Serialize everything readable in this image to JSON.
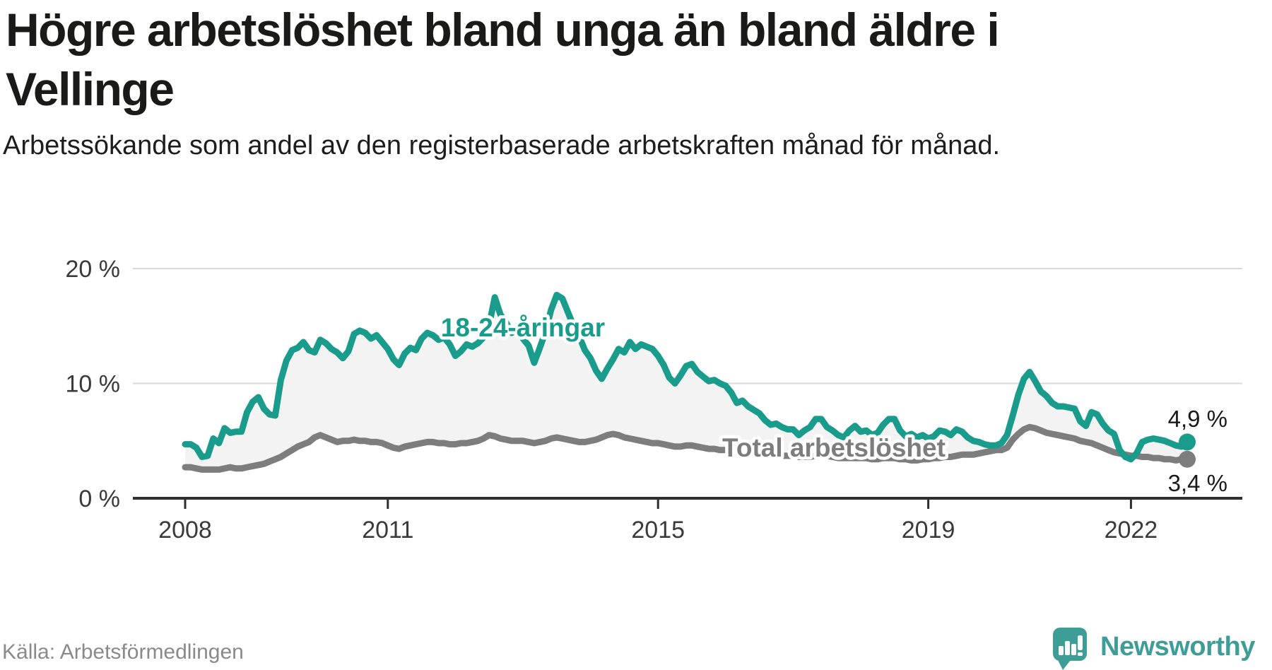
{
  "header": {
    "title": "Högre arbetslöshet bland unga än bland äldre i Vellinge",
    "subtitle": "Arbetssökande som andel av den registerbaserade arbetskraften månad för månad."
  },
  "footer": {
    "source": "Källa: Arbetsförmedlingen",
    "brand": "Newsworthy",
    "brand_icon": "bar-chart-speech-bubble-icon"
  },
  "colors": {
    "youth": "#1a9c8c",
    "total": "#7d7d7d",
    "area_fill": "#f3f3f3",
    "grid": "#d9d9d9",
    "axis": "#2f2f2f",
    "axis_text": "#3a3a3a",
    "value_text": "#1a1a1a",
    "brand_teal": "#3f9d98"
  },
  "chart_data": {
    "type": "line",
    "unit": "%",
    "frequency": "monthly",
    "start": "2008",
    "grid": "horizontal",
    "legend_position": "inline-on-lines",
    "ylim": [
      0,
      21
    ],
    "y_ticks": [
      {
        "label": "0 %",
        "value": 0
      },
      {
        "label": "10 %",
        "value": 10
      },
      {
        "label": "20 %",
        "value": 20
      }
    ],
    "x_ticks": [
      {
        "label": "2008",
        "year": 2008
      },
      {
        "label": "2011",
        "year": 2011
      },
      {
        "label": "2015",
        "year": 2015
      },
      {
        "label": "2019",
        "year": 2019
      },
      {
        "label": "2022",
        "year": 2022
      }
    ],
    "series": [
      {
        "name": "18-24-åringar",
        "color": "#1a9c8c",
        "end_label": "4,9 %",
        "values": [
          4.7,
          4.7,
          4.4,
          3.6,
          3.7,
          5.2,
          4.8,
          6.1,
          5.7,
          5.8,
          5.8,
          7.5,
          8.4,
          8.8,
          7.8,
          7.3,
          7.2,
          10.3,
          12.0,
          12.9,
          13.1,
          13.6,
          12.9,
          12.7,
          13.8,
          13.5,
          13.0,
          12.7,
          12.2,
          12.8,
          14.3,
          14.6,
          14.4,
          13.9,
          14.2,
          13.6,
          13.0,
          12.1,
          11.6,
          12.6,
          13.1,
          12.9,
          13.9,
          14.4,
          14.2,
          13.8,
          14.0,
          13.4,
          12.4,
          12.8,
          13.4,
          13.2,
          13.5,
          14.0,
          15.1,
          17.5,
          16.0,
          15.3,
          14.4,
          14.8,
          13.9,
          13.3,
          11.8,
          13.1,
          14.5,
          16.4,
          17.7,
          17.4,
          16.2,
          15.0,
          14.1,
          12.9,
          12.2,
          11.1,
          10.4,
          11.3,
          12.1,
          13.0,
          12.7,
          13.6,
          13.0,
          13.4,
          13.2,
          13.0,
          12.4,
          11.6,
          10.5,
          10.0,
          10.7,
          11.5,
          11.7,
          11.0,
          10.6,
          10.2,
          10.3,
          10.0,
          9.8,
          9.2,
          8.3,
          8.5,
          8.0,
          7.7,
          7.4,
          6.8,
          6.4,
          6.5,
          6.2,
          6.0,
          6.0,
          5.5,
          5.9,
          6.2,
          6.9,
          6.9,
          6.2,
          5.9,
          5.5,
          5.3,
          5.9,
          6.3,
          5.8,
          5.9,
          5.5,
          5.7,
          6.4,
          6.9,
          6.9,
          5.9,
          5.4,
          5.6,
          5.3,
          5.5,
          5.2,
          5.4,
          5.9,
          5.8,
          5.5,
          6.0,
          5.8,
          5.3,
          5.0,
          4.9,
          4.7,
          4.6,
          4.6,
          4.8,
          5.5,
          7.2,
          9.0,
          10.4,
          11.0,
          10.2,
          9.3,
          8.9,
          8.3,
          8.0,
          8.0,
          7.9,
          7.8,
          6.7,
          6.3,
          7.5,
          7.3,
          6.5,
          5.9,
          5.6,
          4.2,
          3.6,
          3.4,
          3.9,
          4.9,
          5.1,
          5.2,
          5.1,
          5.0,
          4.8,
          4.6,
          4.5,
          4.9
        ]
      },
      {
        "name": "Total arbetslöshet",
        "color": "#7d7d7d",
        "end_label": "3,4 %",
        "values": [
          2.7,
          2.7,
          2.6,
          2.5,
          2.5,
          2.5,
          2.5,
          2.6,
          2.7,
          2.6,
          2.6,
          2.7,
          2.8,
          2.9,
          3.0,
          3.2,
          3.4,
          3.6,
          3.9,
          4.2,
          4.5,
          4.7,
          4.9,
          5.3,
          5.5,
          5.3,
          5.1,
          4.9,
          5.0,
          5.0,
          5.1,
          5.0,
          5.0,
          4.9,
          4.9,
          4.8,
          4.6,
          4.4,
          4.3,
          4.5,
          4.6,
          4.7,
          4.8,
          4.9,
          4.9,
          4.8,
          4.8,
          4.7,
          4.7,
          4.8,
          4.8,
          4.9,
          5.0,
          5.2,
          5.5,
          5.4,
          5.2,
          5.1,
          5.0,
          5.0,
          5.0,
          4.9,
          4.8,
          4.9,
          5.0,
          5.2,
          5.3,
          5.2,
          5.1,
          5.0,
          4.9,
          4.9,
          5.0,
          5.1,
          5.3,
          5.5,
          5.6,
          5.5,
          5.3,
          5.2,
          5.1,
          5.0,
          4.9,
          4.8,
          4.8,
          4.7,
          4.6,
          4.5,
          4.5,
          4.6,
          4.6,
          4.5,
          4.4,
          4.3,
          4.3,
          4.2,
          4.2,
          4.1,
          4.0,
          4.0,
          3.9,
          3.9,
          3.9,
          3.8,
          3.8,
          3.7,
          3.7,
          3.7,
          3.7,
          3.6,
          3.6,
          3.6,
          3.7,
          3.7,
          3.7,
          3.6,
          3.5,
          3.5,
          3.5,
          3.5,
          3.5,
          3.5,
          3.4,
          3.4,
          3.5,
          3.5,
          3.5,
          3.4,
          3.4,
          3.3,
          3.3,
          3.4,
          3.4,
          3.5,
          3.5,
          3.6,
          3.6,
          3.7,
          3.8,
          3.8,
          3.8,
          3.9,
          4.0,
          4.1,
          4.2,
          4.2,
          4.4,
          5.1,
          5.6,
          6.0,
          6.2,
          6.1,
          5.9,
          5.7,
          5.6,
          5.5,
          5.4,
          5.3,
          5.2,
          5.0,
          4.9,
          4.8,
          4.6,
          4.4,
          4.2,
          4.0,
          3.9,
          3.8,
          3.7,
          3.7,
          3.6,
          3.6,
          3.5,
          3.5,
          3.4,
          3.4,
          3.3,
          3.4,
          3.4
        ]
      }
    ]
  }
}
